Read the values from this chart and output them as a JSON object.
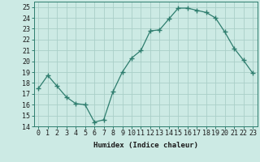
{
  "x": [
    0,
    1,
    2,
    3,
    4,
    5,
    6,
    7,
    8,
    9,
    10,
    11,
    12,
    13,
    14,
    15,
    16,
    17,
    18,
    19,
    20,
    21,
    22,
    23
  ],
  "y": [
    17.5,
    18.7,
    17.7,
    16.7,
    16.1,
    16.0,
    14.4,
    14.6,
    17.2,
    19.0,
    20.3,
    21.0,
    22.8,
    22.9,
    23.9,
    24.9,
    24.9,
    24.7,
    24.5,
    24.0,
    22.7,
    21.2,
    20.1,
    18.9
  ],
  "line_color": "#2e7d6e",
  "marker": "+",
  "marker_size": 4,
  "bg_color": "#cceae4",
  "grid_color": "#aacfc8",
  "xlabel": "Humidex (Indice chaleur)",
  "ylabel": "",
  "xlim": [
    -0.5,
    23.5
  ],
  "ylim": [
    14,
    25.5
  ],
  "xtick_labels": [
    "0",
    "1",
    "2",
    "3",
    "4",
    "5",
    "6",
    "7",
    "8",
    "9",
    "10",
    "11",
    "12",
    "13",
    "14",
    "15",
    "16",
    "17",
    "18",
    "19",
    "20",
    "21",
    "22",
    "23"
  ],
  "yticks": [
    14,
    15,
    16,
    17,
    18,
    19,
    20,
    21,
    22,
    23,
    24,
    25
  ],
  "xlabel_fontsize": 6.5,
  "tick_fontsize": 6
}
